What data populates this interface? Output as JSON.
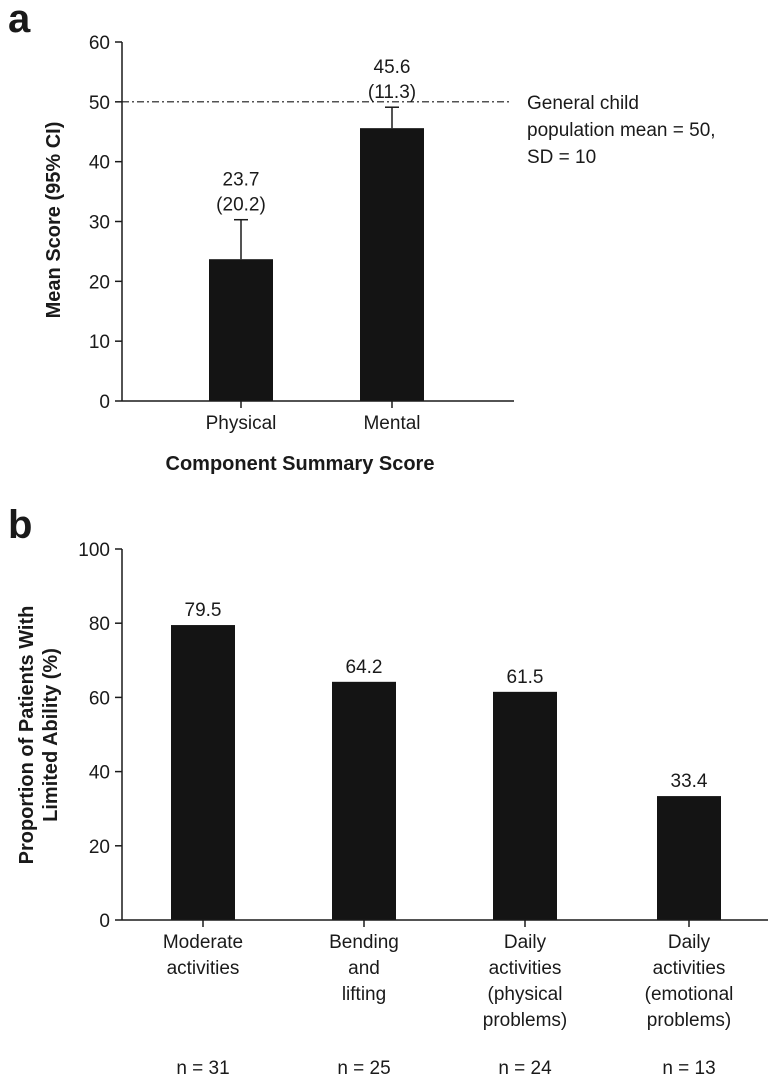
{
  "chart_data": [
    {
      "panel_letter": "a",
      "type": "bar",
      "categories": [
        "Physical",
        "Mental"
      ],
      "values": [
        23.7,
        45.6
      ],
      "error_upper": [
        30.3,
        49.1
      ],
      "value_labels": [
        "23.7",
        "45.6"
      ],
      "sd_labels": [
        "(20.2)",
        "(11.3)"
      ],
      "xlabel": "Component Summary Score",
      "ylabel": "Mean Score (95% CI)",
      "ylim": [
        0,
        60
      ],
      "yticks": [
        0,
        10,
        20,
        30,
        40,
        50,
        60
      ],
      "reference_line": {
        "value": 50,
        "style": "dash-dot",
        "label_lines": [
          "General child",
          "population mean = 50,",
          "SD = 10"
        ]
      },
      "bar_color": "#141414",
      "grid": false
    },
    {
      "panel_letter": "b",
      "type": "bar",
      "categories": [
        [
          "Moderate",
          "activities"
        ],
        [
          "Bending",
          "and",
          "lifting"
        ],
        [
          "Daily",
          "activities",
          "(physical",
          "problems)"
        ],
        [
          "Daily",
          "activities",
          "(emotional",
          "problems)"
        ]
      ],
      "values": [
        79.5,
        64.2,
        61.5,
        33.4
      ],
      "value_labels": [
        "79.5",
        "64.2",
        "61.5",
        "33.4"
      ],
      "n_labels": [
        "n = 31",
        "n = 25",
        "n = 24",
        "n = 13"
      ],
      "ylabel_lines": [
        "Proportion of Patients With",
        "Limited Ability (%)"
      ],
      "ylim": [
        0,
        100
      ],
      "yticks": [
        0,
        20,
        40,
        60,
        80,
        100
      ],
      "bar_color": "#141414",
      "grid": false
    }
  ]
}
